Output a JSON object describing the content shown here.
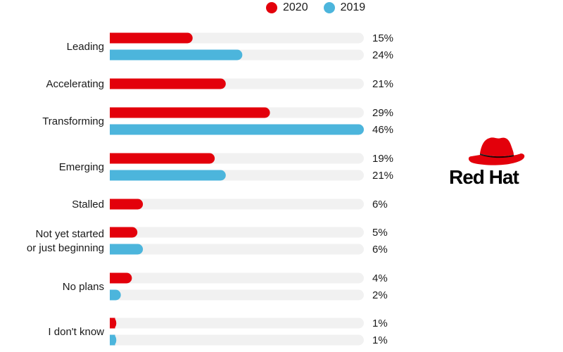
{
  "legend": {
    "series_2020": "2020",
    "series_2019": "2019"
  },
  "colors": {
    "series_2020": "#e3000b",
    "series_2019": "#4cb5dc",
    "track": "#f1f1f1",
    "logo": "#e3000b"
  },
  "brand": {
    "logo_icon": "red-hat-icon",
    "name": "Red Hat"
  },
  "chart_data": {
    "type": "bar",
    "orientation": "horizontal",
    "xlim": [
      0,
      46
    ],
    "grid": false,
    "legend_position": "top",
    "categories": [
      "Leading",
      "Accelerating",
      "Transforming",
      "Emerging",
      "Stalled",
      "Not yet started\nor just beginning",
      "No plans",
      "I don't know"
    ],
    "series": [
      {
        "name": "2020",
        "values": [
          15,
          21,
          29,
          19,
          6,
          5,
          4,
          1
        ],
        "labels": [
          "15%",
          "21%",
          "29%",
          "19%",
          "6%",
          "5%",
          "4%",
          "1%"
        ]
      },
      {
        "name": "2019",
        "values": [
          24,
          null,
          46,
          21,
          null,
          6,
          2,
          1
        ],
        "labels": [
          "24%",
          null,
          "46%",
          "21%",
          null,
          "6%",
          "2%",
          "1%"
        ]
      }
    ]
  }
}
